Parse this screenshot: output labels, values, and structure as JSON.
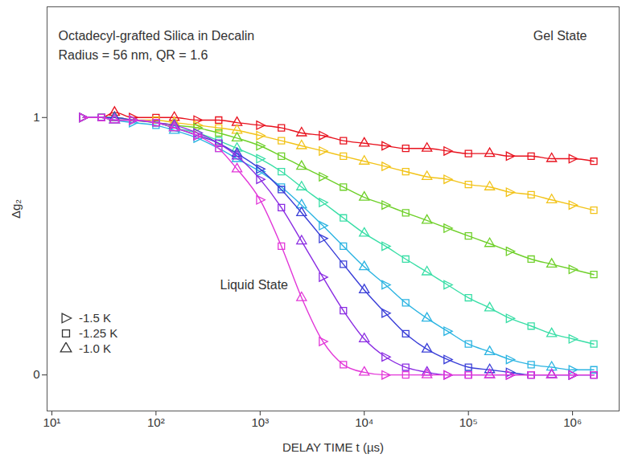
{
  "chart_data": {
    "type": "scatter",
    "annotations": [
      "Octadecyl-grafted Silica in Decalin",
      "Radius = 56 nm, QR = 1.6",
      "Gel State",
      "Liquid State"
    ],
    "x_label": "DELAY TIME t (µs)",
    "y_label": "Δg₂",
    "log": "x",
    "grid": false,
    "legend": "bottom-left",
    "line_style": "solid",
    "xlim": [
      9,
      2800000
    ],
    "xticks": [
      {
        "value": 10,
        "label": "10¹"
      },
      {
        "value": 100,
        "label": "10²"
      },
      {
        "value": 1000,
        "label": "10³"
      },
      {
        "value": 10000,
        "label": "10⁴"
      },
      {
        "value": 100000,
        "label": "10⁵"
      },
      {
        "value": 1000000,
        "label": "10⁶"
      }
    ],
    "ylim": [
      -0.14,
      1.43
    ],
    "yticks": [
      0,
      1
    ],
    "legend_entries": [
      {
        "marker": "triangle-right",
        "label": "-1.5 K"
      },
      {
        "marker": "square",
        "label": "-1.25 K"
      },
      {
        "marker": "triangle",
        "label": "-1.0 K"
      }
    ],
    "x": [
      20,
      30,
      40,
      60,
      100,
      150,
      250,
      400,
      600,
      1000,
      1600,
      2500,
      4000,
      6300,
      10000,
      16000,
      25000,
      40000,
      63000,
      100000,
      160000,
      250000,
      400000,
      630000,
      1000000,
      1600000
    ],
    "markers": [
      "triangle-right",
      "square",
      "triangle",
      "triangle-right",
      "square",
      "triangle",
      "triangle-right",
      "square",
      "triangle",
      "triangle-right",
      "square",
      "triangle",
      "triangle-right",
      "square",
      "triangle",
      "triangle-right",
      "square",
      "triangle",
      "triangle-right",
      "square",
      "triangle",
      "triangle-right",
      "square",
      "triangle",
      "triangle-right",
      "square"
    ],
    "series": [
      {
        "color": "#e8121e",
        "values": [
          1,
          1,
          1.02,
          1,
          1,
          1,
          0.99,
          0.99,
          0.98,
          0.97,
          0.96,
          0.94,
          0.93,
          0.91,
          0.9,
          0.89,
          0.88,
          0.88,
          0.87,
          0.86,
          0.86,
          0.85,
          0.85,
          0.84,
          0.84,
          0.83
        ]
      },
      {
        "color": "#f2c318",
        "values": [
          1,
          1,
          1,
          0.99,
          0.99,
          0.98,
          0.97,
          0.96,
          0.95,
          0.93,
          0.91,
          0.89,
          0.87,
          0.85,
          0.83,
          0.81,
          0.79,
          0.77,
          0.76,
          0.74,
          0.73,
          0.71,
          0.7,
          0.68,
          0.66,
          0.64
        ]
      },
      {
        "color": "#6fd02a",
        "values": [
          1,
          1,
          1,
          0.99,
          0.98,
          0.97,
          0.96,
          0.94,
          0.92,
          0.89,
          0.85,
          0.81,
          0.77,
          0.73,
          0.69,
          0.66,
          0.63,
          0.6,
          0.57,
          0.54,
          0.51,
          0.48,
          0.45,
          0.43,
          0.41,
          0.39
        ]
      },
      {
        "color": "#38dea6",
        "values": [
          1,
          1,
          0.99,
          0.99,
          0.98,
          0.96,
          0.94,
          0.91,
          0.88,
          0.84,
          0.79,
          0.73,
          0.67,
          0.61,
          0.55,
          0.5,
          0.45,
          0.4,
          0.35,
          0.3,
          0.26,
          0.22,
          0.19,
          0.16,
          0.14,
          0.12
        ]
      },
      {
        "color": "#2bb4e2",
        "values": [
          1,
          1,
          0.99,
          0.98,
          0.97,
          0.95,
          0.92,
          0.88,
          0.84,
          0.79,
          0.73,
          0.66,
          0.58,
          0.5,
          0.42,
          0.35,
          0.28,
          0.22,
          0.17,
          0.12,
          0.09,
          0.06,
          0.04,
          0.03,
          0.02,
          0.02
        ]
      },
      {
        "color": "#3a3fd8",
        "values": [
          1,
          1,
          1,
          0.99,
          0.98,
          0.96,
          0.93,
          0.9,
          0.86,
          0.8,
          0.72,
          0.63,
          0.53,
          0.43,
          0.33,
          0.24,
          0.16,
          0.1,
          0.06,
          0.03,
          0.02,
          0.01,
          0,
          0,
          0,
          0
        ]
      },
      {
        "color": "#8a2be2",
        "values": [
          1,
          1,
          0.99,
          0.99,
          0.98,
          0.97,
          0.94,
          0.9,
          0.85,
          0.76,
          0.65,
          0.52,
          0.38,
          0.25,
          0.14,
          0.07,
          0.03,
          0.01,
          0,
          0,
          0,
          0,
          0,
          0,
          0,
          0
        ]
      },
      {
        "color": "#e236d8",
        "values": [
          1,
          1,
          0.99,
          0.99,
          0.98,
          0.96,
          0.93,
          0.88,
          0.8,
          0.68,
          0.5,
          0.3,
          0.13,
          0.04,
          0.01,
          0,
          0,
          0,
          0,
          0,
          0,
          0,
          0,
          0,
          0,
          0
        ]
      }
    ]
  }
}
